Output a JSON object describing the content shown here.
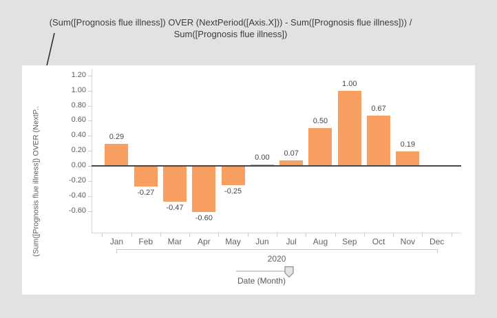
{
  "page": {
    "background": "#e2e2e2",
    "card_background": "#ffffff"
  },
  "title": {
    "line1": "(Sum([Prognosis flue illness]) OVER (NextPeriod([Axis.X])) - Sum([Prognosis flue illness])) /",
    "line2": "Sum([Prognosis flue illness])"
  },
  "slider": {
    "label": "Date (Month)",
    "handle_position": "right"
  },
  "chart_data": {
    "type": "bar",
    "title": "(Sum([Prognosis flue illness]) OVER (NextPeriod([Axis.X])) - Sum([Prognosis flue illness])) / Sum([Prognosis flue illness])",
    "categories": [
      "Jan",
      "Feb",
      "Mar",
      "Apr",
      "May",
      "Jun",
      "Jul",
      "Aug",
      "Sep",
      "Oct",
      "Nov",
      "Dec"
    ],
    "values": [
      0.29,
      -0.27,
      -0.47,
      -0.6,
      -0.25,
      0.0,
      0.07,
      0.5,
      1.0,
      0.67,
      0.19,
      null
    ],
    "value_labels": [
      "0.29",
      "-0.27",
      "-0.47",
      "-0.60",
      "-0.25",
      "0.00",
      "0.07",
      "0.50",
      "1.00",
      "0.67",
      "0.19",
      ""
    ],
    "x_group_label": "2020",
    "xlabel": "Date (Month)",
    "ylabel": "(Sum([Prognosis flue illness]) OVER (NextP..",
    "yticks": [
      1.2,
      1.0,
      0.8,
      0.6,
      0.4,
      0.2,
      0.0,
      -0.2,
      -0.4,
      -0.6
    ],
    "ytick_labels": [
      "1.20",
      "1.00",
      "0.80",
      "0.60",
      "0.40",
      "0.20",
      "0.00",
      "-0.20",
      "-0.40",
      "-0.60"
    ],
    "ylim": [
      -0.89,
      1.29
    ],
    "grid": false,
    "legend": null,
    "bar_color": "#f89e61",
    "zero_line_color": "#474747",
    "axis_line_color": "#d9d9d9"
  }
}
